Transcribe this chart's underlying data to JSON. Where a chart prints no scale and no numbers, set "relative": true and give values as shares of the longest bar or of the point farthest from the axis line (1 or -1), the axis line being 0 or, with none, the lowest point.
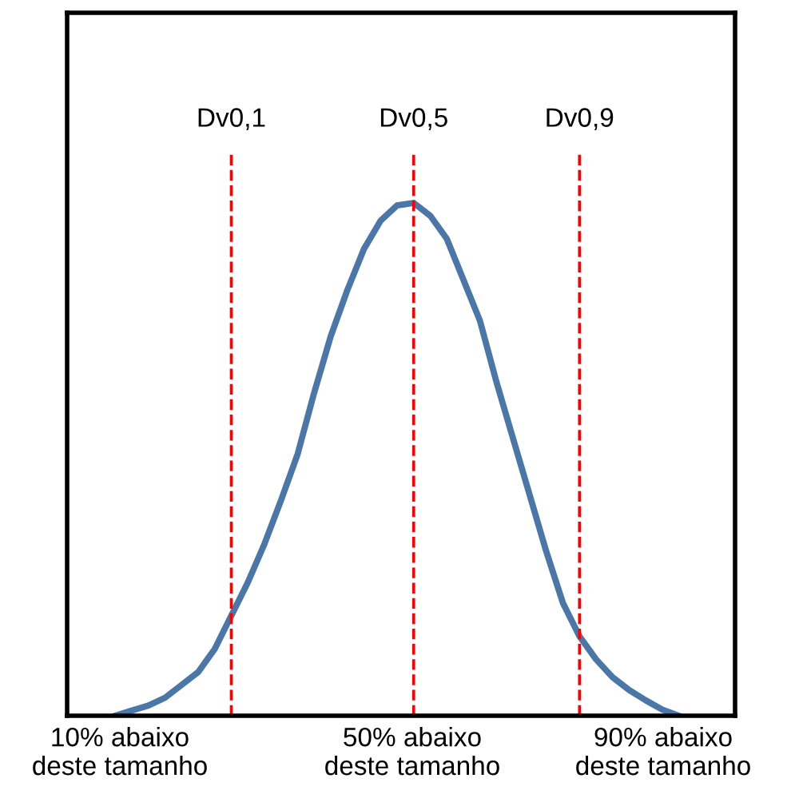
{
  "chart_data": {
    "type": "line",
    "relative": true,
    "categories": [
      null,
      null,
      null,
      null,
      null,
      null,
      null,
      "Dv0,1",
      null,
      null,
      null,
      null,
      null,
      null,
      null,
      null,
      null,
      null,
      "Dv0,5",
      null,
      null,
      null,
      null,
      null,
      null,
      null,
      null,
      null,
      "Dv0,9",
      null,
      null,
      null,
      null,
      null,
      null
    ],
    "series": [
      {
        "color": "#4a76a8",
        "values": [
          0,
          0.01,
          0.02,
          0.035,
          0.06,
          0.085,
          0.13,
          0.195,
          0.26,
          0.335,
          0.42,
          0.51,
          0.63,
          0.74,
          0.83,
          0.91,
          0.965,
          0.995,
          1,
          0.975,
          0.93,
          0.85,
          0.77,
          0.65,
          0.54,
          0.43,
          0.32,
          0.22,
          0.155,
          0.11,
          0.075,
          0.05,
          0.03,
          0.012,
          0
        ]
      }
    ],
    "annotations": [
      "10% abaixo\ndeste tamanho",
      "50% abaixo\ndeste tamanho",
      "90% abaixo\ndeste tamanho"
    ],
    "tick_labels": "x",
    "ref_lines": [
      {
        "axis": "x",
        "value": "Dv0,1",
        "color": "#ff0000",
        "line_style": "dashed"
      },
      {
        "axis": "x",
        "value": "Dv0,5",
        "color": "#ff0000",
        "line_style": "dashed"
      },
      {
        "axis": "x",
        "value": "Dv0,9",
        "color": "#ff0000",
        "line_style": "dashed"
      }
    ],
    "marker": "none",
    "line_style": "solid"
  }
}
